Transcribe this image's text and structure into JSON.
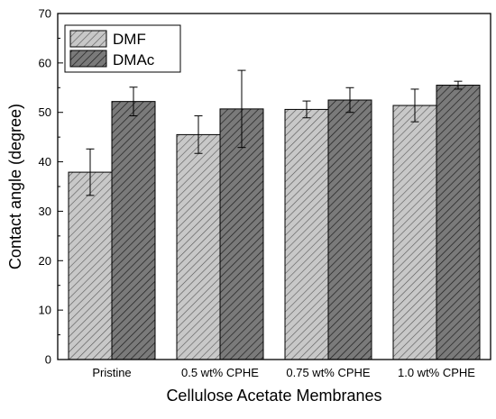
{
  "chart_data": {
    "type": "bar",
    "title": "",
    "xlabel": "Cellulose Acetate Membranes",
    "ylabel": "Contact angle (degree)",
    "ylim": [
      0,
      70
    ],
    "yticks": [
      0,
      10,
      20,
      30,
      40,
      50,
      60,
      70
    ],
    "grid": false,
    "legend_position": "top-left",
    "categories": [
      "Pristine",
      "0.5 wt% CPHE",
      "0.75 wt% CPHE",
      "1.0 wt% CPHE"
    ],
    "series": [
      {
        "name": "DMF",
        "values": [
          37.9,
          45.5,
          50.6,
          51.4
        ],
        "errors": [
          4.7,
          3.8,
          1.7,
          3.3
        ],
        "color": "#c8c8c8",
        "hatch_color": "#555555"
      },
      {
        "name": "DMAc",
        "values": [
          52.2,
          50.7,
          52.5,
          55.5
        ],
        "errors": [
          2.9,
          7.8,
          2.5,
          0.8
        ],
        "color": "#7a7a7a",
        "hatch_color": "#1e1e1e"
      }
    ]
  }
}
